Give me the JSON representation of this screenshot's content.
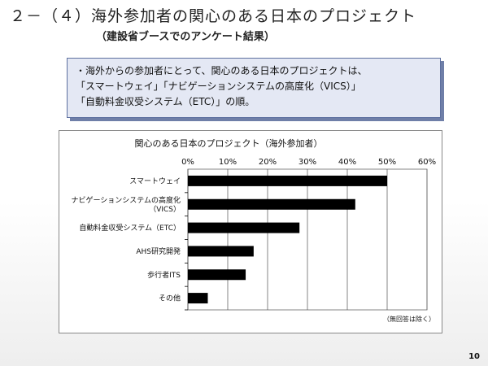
{
  "slide": {
    "title": "２－（４）海外参加者の関心のある日本のプロジェクト",
    "subtitle": "（建設省ブースでのアンケート結果）",
    "summary_lines": [
      "・海外からの参加者にとって、関心のある日本のプロジェクトは、",
      "「スマートウェイ」「ナビゲーションシステムの高度化（VICS）」",
      "「自動料金収受システム（ETC）」の順。"
    ],
    "page_number": "10"
  },
  "chart_data": {
    "type": "bar",
    "orientation": "horizontal",
    "title": "関心のある日本のプロジェクト（海外参加者）",
    "categories": [
      [
        "スマートウェイ"
      ],
      [
        "ナビゲーションシステムの高度化",
        "（VICS）"
      ],
      [
        "自動料金収受システム（ETC）"
      ],
      [
        "AHS研究開発"
      ],
      [
        "歩行者ITS"
      ],
      [
        "その他"
      ]
    ],
    "values": [
      50,
      42,
      28,
      16.5,
      14.5,
      5
    ],
    "xlim": [
      0,
      60
    ],
    "xticks": [
      0,
      10,
      20,
      30,
      40,
      50,
      60
    ],
    "tick_suffix": "%",
    "grid": true,
    "bar_color": "#000000",
    "note": "（無回答は除く）"
  }
}
